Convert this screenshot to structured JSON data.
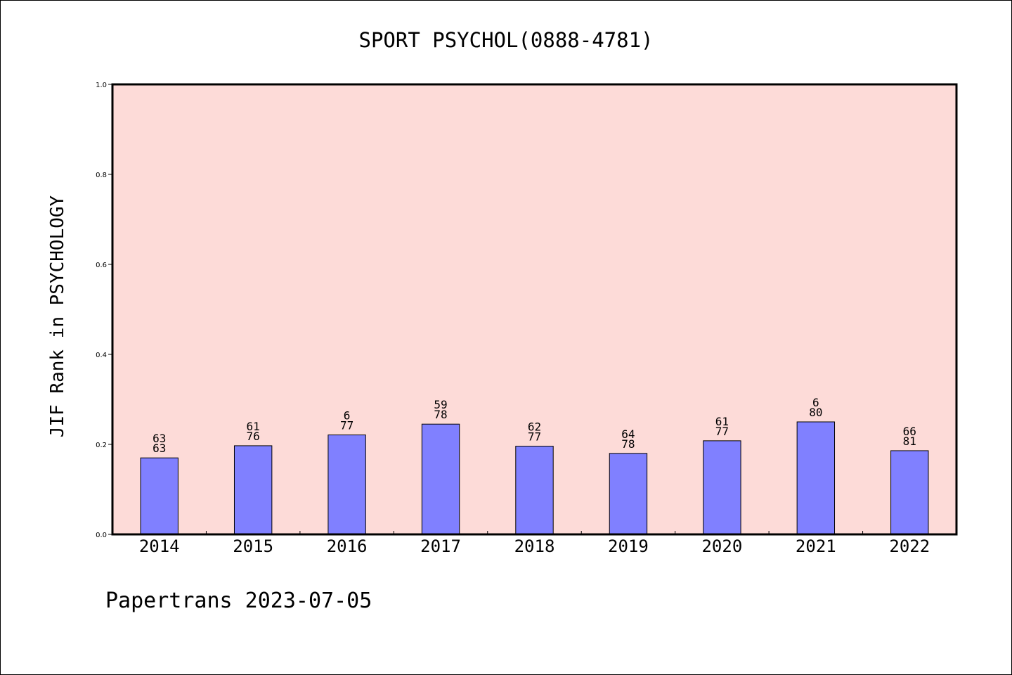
{
  "chart_data": {
    "type": "bar",
    "title": "SPORT PSYCHOL(0888-4781)",
    "xlabel": "",
    "ylabel": "JIF Rank in PSYCHOLOGY",
    "ylim": [
      0,
      1.0
    ],
    "yticks": [
      "0.0",
      "0.2",
      "0.4",
      "0.6",
      "0.8",
      "1.0"
    ],
    "grid": false,
    "categories": [
      "2014",
      "2015",
      "2016",
      "2017",
      "2018",
      "2019",
      "2020",
      "2021",
      "2022"
    ],
    "values": [
      0.17,
      0.197,
      0.221,
      0.245,
      0.196,
      0.18,
      0.208,
      0.25,
      0.186
    ],
    "label_top": [
      "63",
      "61",
      "6",
      "59",
      "62",
      "64",
      "61",
      "6",
      "66"
    ],
    "label_bottom": [
      "63",
      "76",
      "77",
      "78",
      "77",
      "78",
      "77",
      "80",
      "81"
    ]
  },
  "footer": {
    "text": "Papertrans 2023-07-05"
  },
  "colors": {
    "plot_background": "#fddbd8",
    "bar_fill": "#8080ff",
    "frame": "#000000"
  }
}
